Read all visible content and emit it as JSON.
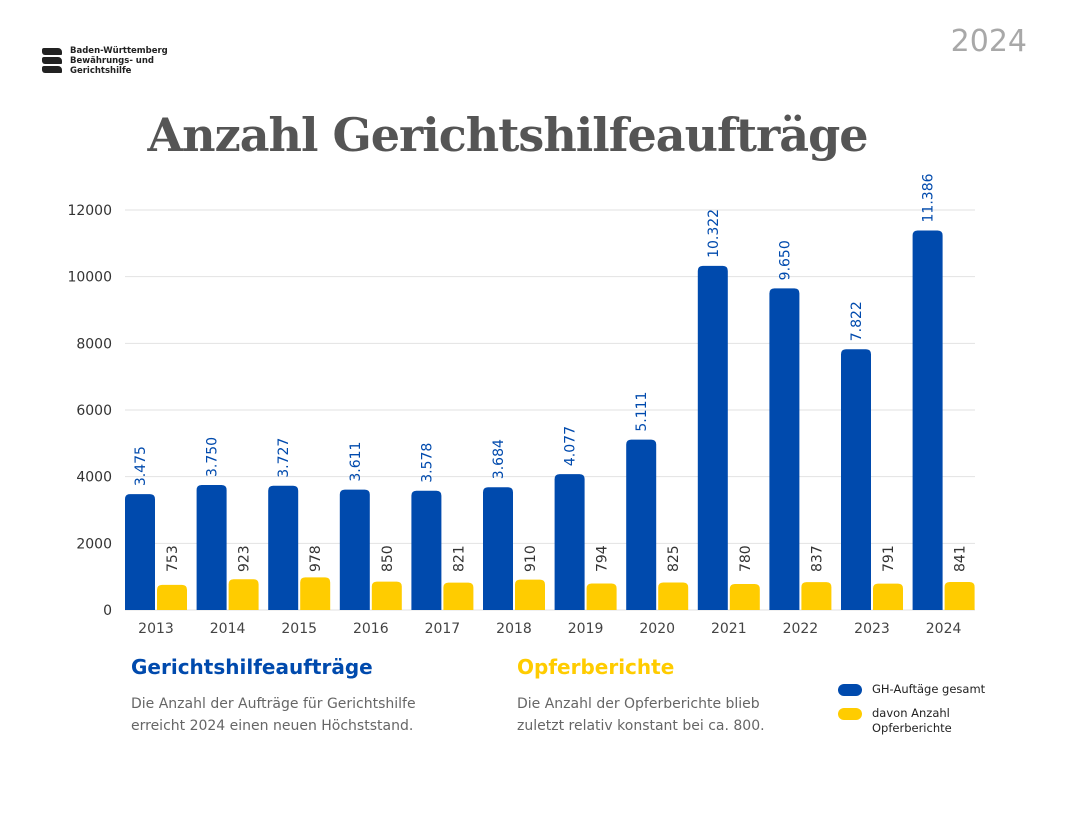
{
  "header": {
    "logo_text": [
      "Baden-Württemberg",
      "Bewährungs- und",
      "Gerichtshilfe"
    ],
    "year": "2024",
    "title": "Anzahl Gerichtshilfeaufträge"
  },
  "colors": {
    "blue": "#004AAD",
    "yellow": "#FFCC00"
  },
  "chart_data": {
    "type": "bar",
    "categories": [
      "2013",
      "2014",
      "2015",
      "2016",
      "2017",
      "2018",
      "2019",
      "2020",
      "2021",
      "2022",
      "2023",
      "2024"
    ],
    "series": [
      {
        "name": "GH-Auftäge gesamt",
        "values": [
          3475,
          3750,
          3727,
          3611,
          3578,
          3684,
          4077,
          5111,
          10322,
          9650,
          7822,
          11386
        ],
        "labels": [
          "3.475",
          "3.750",
          "3.727",
          "3.611",
          "3.578",
          "3.684",
          "4.077",
          "5.111",
          "10.322",
          "9.650",
          "7.822",
          "11.386"
        ],
        "color": "#004AAD"
      },
      {
        "name": "davon Anzahl Opferberichte",
        "values": [
          753,
          923,
          978,
          850,
          821,
          910,
          794,
          825,
          780,
          837,
          791,
          841
        ],
        "labels": [
          "753",
          "923",
          "978",
          "850",
          "821",
          "910",
          "794",
          "825",
          "780",
          "837",
          "791",
          "841"
        ],
        "color": "#FFCC00"
      }
    ],
    "yticks": [
      "0",
      "2000",
      "4000",
      "6000",
      "8000",
      "10000",
      "12000"
    ],
    "ylim": [
      0,
      12000
    ],
    "grid": true,
    "legend": "bottom-right"
  },
  "sections": [
    {
      "heading": "Gerichtshilfeaufträge",
      "text": "Die Anzahl der Aufträge für Gerichtshilfe erreicht 2024 einen neuen Höchststand."
    },
    {
      "heading": "Opferberichte",
      "text": "Die Anzahl der Opferberichte blieb zuletzt relativ konstant bei ca. 800."
    }
  ],
  "legend": [
    {
      "label": "GH-Auftäge gesamt"
    },
    {
      "label": "davon Anzahl Opferberichte"
    }
  ]
}
